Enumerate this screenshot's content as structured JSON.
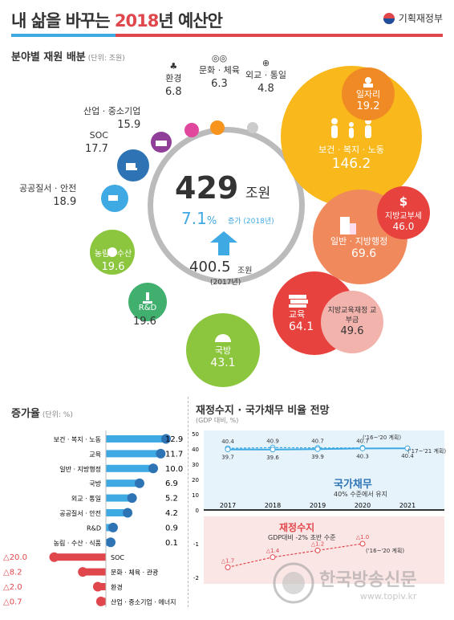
{
  "header": {
    "title_a": "내 삶을 바꾸는 ",
    "title_year": "2018",
    "title_b": "년 예산안",
    "ministry": "기획재정부"
  },
  "alloc": {
    "title": "분야별 재원 배분",
    "unit": "(단위: 조원)",
    "center": {
      "total": "429",
      "total_unit": "조원",
      "rate": "7.1",
      "rate_unit": "%",
      "rate_note": "증가 (2018년)",
      "prev": "400.5",
      "prev_unit": "조원",
      "prev_year": "(2017년)"
    },
    "items": [
      {
        "name": "보건 · 복지 · 노동",
        "value": "146.2",
        "color": "#f9b81b"
      },
      {
        "name": "일자리",
        "value": "19.2",
        "color": "#f08a24"
      },
      {
        "name": "일반 · 지방행정",
        "value": "69.6",
        "color": "#f08a5d"
      },
      {
        "name": "지방교부세",
        "value": "46.0",
        "color": "#e8423f"
      },
      {
        "name": "교육",
        "value": "64.1",
        "color": "#e8423f"
      },
      {
        "name": "지방교육재정 교부금",
        "value": "49.6",
        "color": "#f3b3ad"
      },
      {
        "name": "국방",
        "value": "43.1",
        "color": "#8cc63e"
      },
      {
        "name": "R&D",
        "value": "19.6",
        "color": "#41b06e"
      },
      {
        "name": "농림 · 수산",
        "value": "19.6",
        "color": "#8cc63e"
      },
      {
        "name": "공공질서 · 안전",
        "value": "18.9",
        "color": "#3fa9e3"
      },
      {
        "name": "SOC",
        "value": "17.7",
        "color": "#2e74b5"
      },
      {
        "name": "산업 · 중소기업",
        "value": "15.9",
        "color": "#8f3f97"
      },
      {
        "name": "환경",
        "value": "6.8",
        "color": "#e0479d"
      },
      {
        "name": "문화 · 체육",
        "value": "6.3",
        "color": "#f7941d"
      },
      {
        "name": "외교 · 통일",
        "value": "4.8",
        "color": "#cccccc"
      }
    ]
  },
  "growth": {
    "title": "증가율",
    "unit": "(단위: %)"
  },
  "fiscal": {
    "title": "재정수지 · 국가채무 비율 전망",
    "unit": "(GDP 대비, %)",
    "debt_label": "국가채무",
    "debt_note": "40% 수준에서 유지",
    "bal_label": "재정수지",
    "bal_note": "GDP대비 -2% 초반 수준",
    "note_a": "('16~'20 계획)",
    "note_b": "('17~'21 계획)",
    "note_c": "('16~'20 계획)"
  },
  "watermark": {
    "name": "한국방송신문",
    "url": "www.topiv.kr"
  },
  "chart_data": [
    {
      "type": "bar",
      "title": "증가율",
      "ylabel": "(단위: %)",
      "categories": [
        "보건 · 복지 · 노동",
        "교육",
        "일반 · 지방행정",
        "국방",
        "외교 · 통일",
        "공공질서 · 안전",
        "R&D",
        "농림 · 수산 · 식품",
        "SOC",
        "문화 · 체육 · 관광",
        "환경",
        "산업 · 중소기업 · 에너지"
      ],
      "values": [
        12.9,
        11.7,
        10.0,
        6.9,
        5.2,
        4.2,
        0.9,
        0.1,
        -20.0,
        -8.2,
        -2.0,
        -0.7
      ],
      "labels": [
        "12.9",
        "11.7",
        "10.0",
        "6.9",
        "5.2",
        "4.2",
        "0.9",
        "0.1",
        "△20.0",
        "△8.2",
        "△2.0",
        "△0.7"
      ]
    },
    {
      "type": "line",
      "title": "재정수지 · 국가채무 비율 전망",
      "ylabel": "(GDP 대비, %)",
      "x": [
        "2017",
        "2018",
        "2019",
        "2020",
        "2021"
      ],
      "ylim": [
        -2,
        50
      ],
      "yticks": [
        "50",
        "40",
        "30",
        "20",
        "10",
        "0",
        "-1",
        "-2"
      ],
      "series": [
        {
          "name": "('16~'20 계획)",
          "values": [
            40.4,
            40.9,
            40.7,
            40.7,
            null
          ],
          "labels": [
            "40.4",
            "40.9",
            "40.7",
            "40.7",
            ""
          ]
        },
        {
          "name": "('17~'21 계획)",
          "values": [
            39.7,
            39.6,
            39.9,
            40.3,
            40.4
          ],
          "labels": [
            "39.7",
            "39.6",
            "39.9",
            "40.3",
            "40.4"
          ]
        },
        {
          "name": "재정수지 ('16~'20 계획)",
          "values": [
            -1.7,
            -1.4,
            -1.2,
            -1.0,
            null
          ],
          "labels": [
            "△1.7",
            "△1.4",
            "△1.2",
            "△1.0",
            ""
          ]
        }
      ]
    }
  ]
}
